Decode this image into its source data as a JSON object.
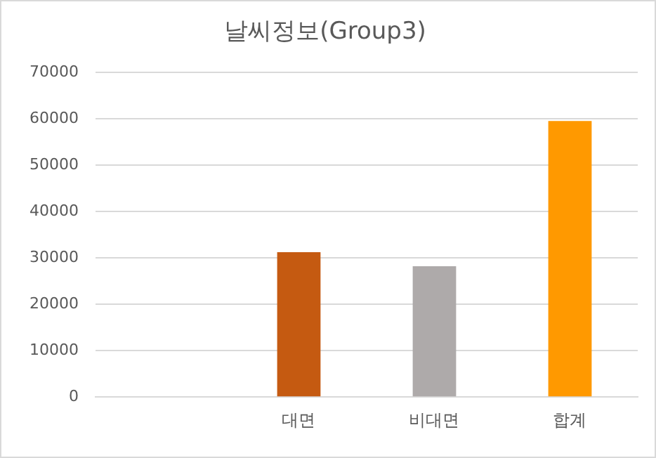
{
  "chart_data": {
    "type": "bar",
    "title": "날씨정보(Group3)",
    "categories": [
      null,
      "대면",
      "비대면",
      "합계"
    ],
    "values": [
      null,
      31200,
      28200,
      59500
    ],
    "colors": [
      "#c55a11",
      "#c55a11",
      "#aeaaaa",
      "#ff9900"
    ],
    "ylim": [
      0,
      70000
    ],
    "yticks": [
      0,
      10000,
      20000,
      30000,
      40000,
      50000,
      60000,
      70000
    ],
    "grid": "y",
    "legend": false
  }
}
